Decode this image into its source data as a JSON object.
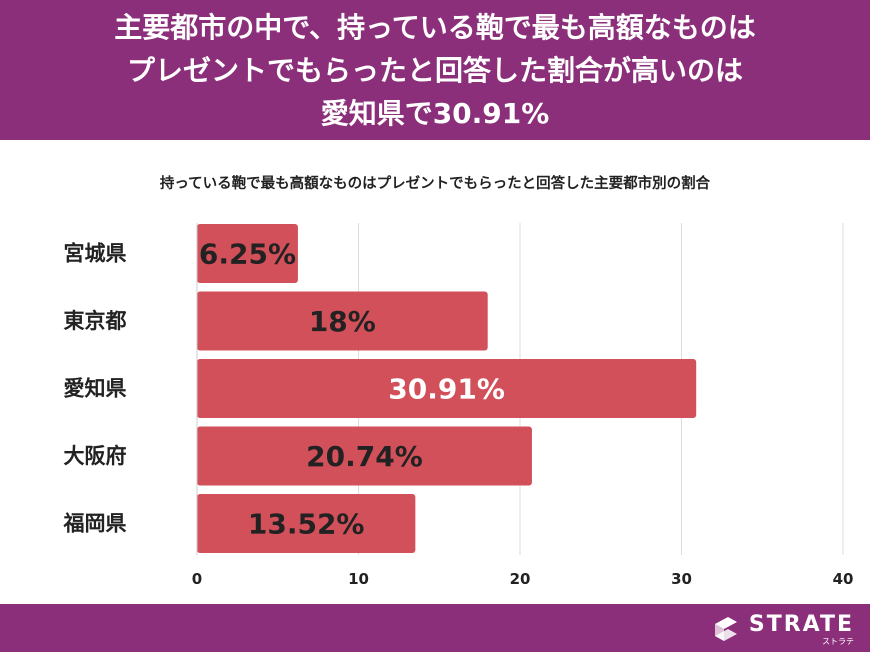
{
  "header": {
    "line1": "主要都市の中で、持っている鞄で最も高額なものは",
    "line2": "プレゼントでもらったと回答した割合が高いのは",
    "line3": "愛知県で30.91%"
  },
  "chart_data": {
    "type": "bar",
    "orientation": "horizontal",
    "title": "持っている鞄で最も高額なものはプレゼントでもらったと回答した主要都市別の割合",
    "categories": [
      "宮城県",
      "東京都",
      "愛知県",
      "大阪府",
      "福岡県"
    ],
    "values": [
      6.25,
      18,
      30.91,
      20.74,
      13.52
    ],
    "value_labels": [
      "6.25%",
      "18%",
      "30.91%",
      "20.74%",
      "13.52%"
    ],
    "xlim": [
      0,
      40
    ],
    "x_ticks": [
      0,
      10,
      20,
      30,
      40
    ],
    "grid": true,
    "bar_color": "#d2505a",
    "label_colors": [
      "#222222",
      "#222222",
      "#ffffff",
      "#222222",
      "#222222"
    ]
  },
  "footer": {
    "brand_name": "STRATE",
    "brand_kana": "ストラテ",
    "logo_icon": "strate-logo-icon",
    "color": "#8b2f7a"
  }
}
